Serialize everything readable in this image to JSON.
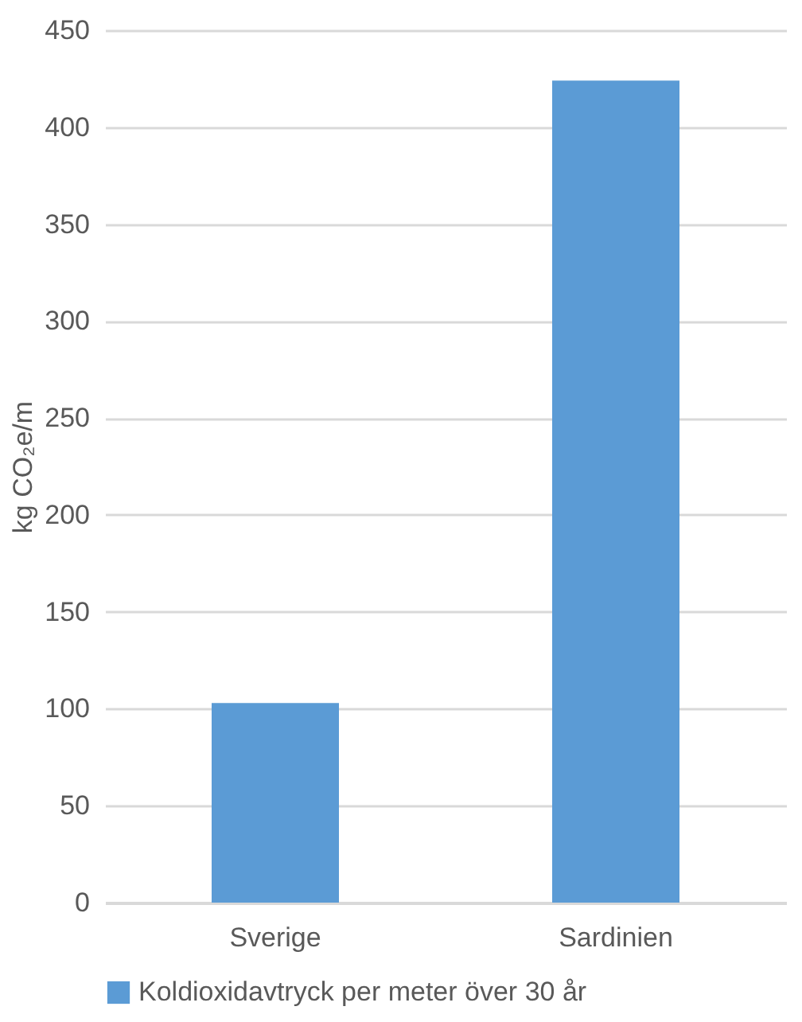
{
  "chart_data": {
    "type": "bar",
    "ylabel": "kg CO₂e/m",
    "categories": [
      "Sverige",
      "Sardinien"
    ],
    "series": [
      {
        "name": "Koldioxidavtryck per meter över 30 år",
        "color": "#5b9bd5",
        "values": [
          103,
          424
        ]
      }
    ],
    "ylim": [
      0,
      450
    ],
    "yticks": [
      0,
      50,
      100,
      150,
      200,
      250,
      300,
      350,
      400,
      450
    ],
    "grid": "y",
    "legend": "bottom"
  }
}
